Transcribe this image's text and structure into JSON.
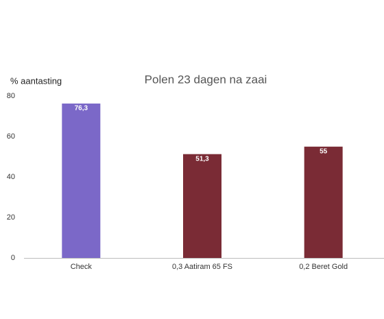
{
  "chart_data": {
    "type": "bar",
    "title": "Polen 23 dagen na zaai",
    "y_label": "% aantasting",
    "categories": [
      "Check",
      "0,3 Aatiram 65 FS",
      "0,2 Beret Gold"
    ],
    "values": [
      76.3,
      51.3,
      55
    ],
    "value_labels": [
      "76,3",
      "51,3",
      "55"
    ],
    "colors": [
      "#7b68c8",
      "#7a2b35",
      "#7a2b35"
    ],
    "ylim": [
      0,
      80
    ],
    "yticks": [
      0,
      20,
      40,
      60,
      80
    ],
    "grid": false
  }
}
